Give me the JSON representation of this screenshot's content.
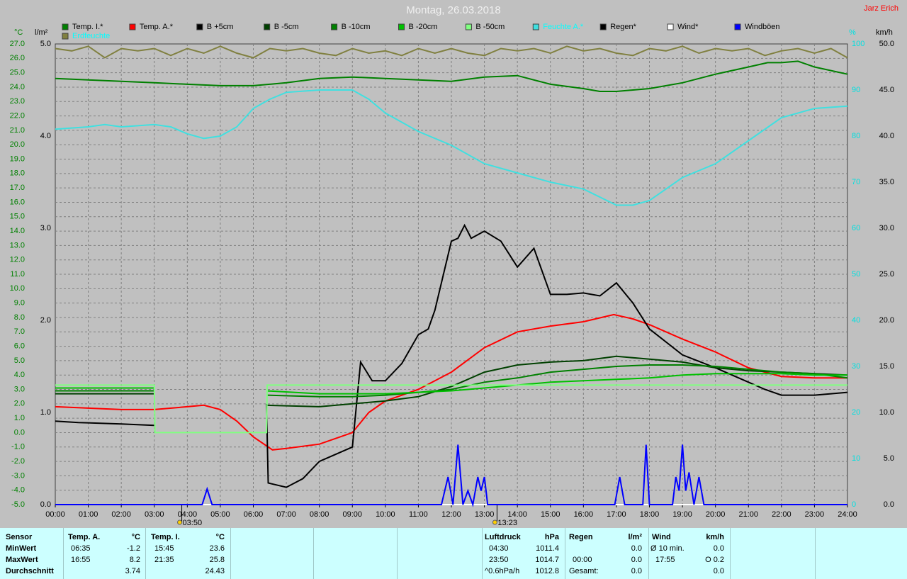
{
  "chart_data": {
    "type": "line",
    "title": "Montag, 26.03.2018",
    "author": "Jarz Erich",
    "y_unit": "°C",
    "y2_unit": "l/m²",
    "y3_unit": "%",
    "y4_unit": "km/h",
    "y_color": "#008000",
    "y2_color": "#000000",
    "y3_color": "#00e0e0",
    "y4_color": "#000000",
    "grid": true,
    "xlim": [
      0,
      24
    ],
    "xticks": [
      {
        "value": 0,
        "label": "00:00"
      },
      {
        "value": 1,
        "label": "01:00"
      },
      {
        "value": 2,
        "label": "02:00"
      },
      {
        "value": 3,
        "label": "03:00"
      },
      {
        "value": 4,
        "label": "04:00"
      },
      {
        "value": 5,
        "label": "05:00"
      },
      {
        "value": 6,
        "label": "06:00"
      },
      {
        "value": 7,
        "label": "07:00"
      },
      {
        "value": 8,
        "label": "08:00"
      },
      {
        "value": 9,
        "label": "09:00"
      },
      {
        "value": 10,
        "label": "10:00"
      },
      {
        "value": 11,
        "label": "11:00"
      },
      {
        "value": 12,
        "label": "12:00"
      },
      {
        "value": 13,
        "label": "13:00"
      },
      {
        "value": 14,
        "label": "14:00"
      },
      {
        "value": 15,
        "label": "15:00"
      },
      {
        "value": 16,
        "label": "16:00"
      },
      {
        "value": 17,
        "label": "17:00"
      },
      {
        "value": 18,
        "label": "18:00"
      },
      {
        "value": 19,
        "label": "19:00"
      },
      {
        "value": 20,
        "label": "20:00"
      },
      {
        "value": 21,
        "label": "21:00"
      },
      {
        "value": 22,
        "label": "22:00"
      },
      {
        "value": 23,
        "label": "23:00"
      },
      {
        "value": 24,
        "label": "24:00"
      }
    ],
    "ylim": [
      -5,
      27
    ],
    "yticks": [
      {
        "value": -5,
        "label": "-5.0"
      },
      {
        "value": -4,
        "label": "-4.0"
      },
      {
        "value": -3,
        "label": "-3.0"
      },
      {
        "value": -2,
        "label": "-2.0"
      },
      {
        "value": -1,
        "label": "-1.0"
      },
      {
        "value": 0,
        "label": "0.0"
      },
      {
        "value": 1,
        "label": "1.0"
      },
      {
        "value": 2,
        "label": "2.0"
      },
      {
        "value": 3,
        "label": "3.0"
      },
      {
        "value": 4,
        "label": "4.0"
      },
      {
        "value": 5,
        "label": "5.0"
      },
      {
        "value": 6,
        "label": "6.0"
      },
      {
        "value": 7,
        "label": "7.0"
      },
      {
        "value": 8,
        "label": "8.0"
      },
      {
        "value": 9,
        "label": "9.0"
      },
      {
        "value": 10,
        "label": "10.0"
      },
      {
        "value": 11,
        "label": "11.0"
      },
      {
        "value": 12,
        "label": "12.0"
      },
      {
        "value": 13,
        "label": "13.0"
      },
      {
        "value": 14,
        "label": "14.0"
      },
      {
        "value": 15,
        "label": "15.0"
      },
      {
        "value": 16,
        "label": "16.0"
      },
      {
        "value": 17,
        "label": "17.0"
      },
      {
        "value": 18,
        "label": "18.0"
      },
      {
        "value": 19,
        "label": "19.0"
      },
      {
        "value": 20,
        "label": "20.0"
      },
      {
        "value": 21,
        "label": "21.0"
      },
      {
        "value": 22,
        "label": "22.0"
      },
      {
        "value": 23,
        "label": "23.0"
      },
      {
        "value": 24,
        "label": "24.0"
      },
      {
        "value": 25,
        "label": "25.0"
      },
      {
        "value": 26,
        "label": "26.0"
      },
      {
        "value": 27,
        "label": "27.0"
      }
    ],
    "y2lim": [
      0,
      5
    ],
    "y2ticks": [
      {
        "value": 0,
        "label": "0.0"
      },
      {
        "value": 1,
        "label": "1.0"
      },
      {
        "value": 2,
        "label": "2.0"
      },
      {
        "value": 3,
        "label": "3.0"
      },
      {
        "value": 4,
        "label": "4.0"
      },
      {
        "value": 5,
        "label": "5.0"
      }
    ],
    "y3lim": [
      0,
      100
    ],
    "y3ticks": [
      0,
      10,
      20,
      30,
      40,
      50,
      60,
      70,
      80,
      90,
      100
    ],
    "y4lim": [
      0,
      50
    ],
    "y4ticks": [
      {
        "value": 0,
        "label": "0.0"
      },
      {
        "value": 5,
        "label": "5.0"
      },
      {
        "value": 10,
        "label": "10.0"
      },
      {
        "value": 15,
        "label": "15.0"
      },
      {
        "value": 20,
        "label": "20.0"
      },
      {
        "value": 25,
        "label": "25.0"
      },
      {
        "value": 30,
        "label": "30.0"
      },
      {
        "value": 35,
        "label": "35.0"
      },
      {
        "value": 40,
        "label": "40.0"
      },
      {
        "value": 45,
        "label": "45.0"
      },
      {
        "value": 50,
        "label": "50.0"
      }
    ],
    "annotations": [
      {
        "text": "03:50",
        "x": 3.833
      },
      {
        "text": "13:23",
        "x": 13.383
      }
    ],
    "series": [
      {
        "name": "Temp. I.*",
        "color": "#008000",
        "axis": "y",
        "x": [
          0,
          1,
          2,
          3,
          4,
          5,
          6,
          7,
          8,
          9,
          10,
          11,
          12,
          13,
          14,
          15,
          16,
          16.5,
          17,
          17.5,
          18,
          19,
          20,
          21,
          21.58,
          22,
          22.5,
          23,
          24
        ],
        "values": [
          24.6,
          24.5,
          24.4,
          24.3,
          24.2,
          24.1,
          24.1,
          24.3,
          24.6,
          24.7,
          24.6,
          24.5,
          24.4,
          24.7,
          24.8,
          24.2,
          23.9,
          23.7,
          23.7,
          23.8,
          23.9,
          24.3,
          24.9,
          25.4,
          25.7,
          25.7,
          25.8,
          25.4,
          24.9
        ]
      },
      {
        "name": "Temp. A.*",
        "color": "#ff0000",
        "axis": "y",
        "x": [
          0,
          1,
          2,
          3,
          4,
          4.5,
          5,
          5.5,
          6,
          6.58,
          7,
          8,
          8.5,
          9,
          9.5,
          10,
          11,
          12,
          13,
          14,
          15,
          16,
          16.92,
          17.5,
          18,
          19,
          20,
          21,
          22,
          23,
          24
        ],
        "values": [
          1.8,
          1.7,
          1.6,
          1.6,
          1.8,
          1.9,
          1.6,
          0.8,
          -0.3,
          -1.2,
          -1.1,
          -0.8,
          -0.4,
          0,
          1.4,
          2.2,
          3.0,
          4.2,
          5.9,
          7.0,
          7.4,
          7.7,
          8.2,
          7.9,
          7.5,
          6.5,
          5.6,
          4.5,
          3.9,
          3.8,
          3.8
        ]
      },
      {
        "name": "B +5cm",
        "color": "#000000",
        "axis": "y",
        "x": [
          0,
          0.7,
          2,
          3,
          3.2,
          6.4,
          6.45,
          7,
          7.5,
          8,
          8.5,
          9,
          9.25,
          9.6,
          10,
          10.5,
          11,
          11.3,
          11.5,
          12,
          12.2,
          12.4,
          12.6,
          13,
          13.5,
          14,
          14.5,
          15,
          15.5,
          16,
          16.5,
          17,
          17.5,
          18,
          19,
          20,
          21,
          21.5,
          22,
          23,
          24
        ],
        "values": [
          0.8,
          0.7,
          0.6,
          0.5,
          null,
          2.0,
          -3.5,
          -3.8,
          -3.2,
          -2.0,
          -1.5,
          -1.0,
          4.9,
          3.6,
          3.6,
          4.8,
          6.8,
          7.2,
          8.5,
          13.3,
          13.5,
          14.4,
          13.5,
          14.0,
          13.3,
          11.5,
          12.8,
          9.6,
          9.6,
          9.7,
          9.5,
          10.4,
          9.0,
          7.2,
          5.4,
          4.5,
          3.5,
          3.0,
          2.6,
          2.6,
          2.8
        ]
      },
      {
        "name": "B -5cm",
        "color": "#004000",
        "axis": "y",
        "x": [
          0,
          3,
          3.05,
          6.4,
          8,
          9,
          10,
          11,
          12,
          13,
          14,
          15,
          16,
          17,
          18,
          19,
          20,
          21,
          22,
          23,
          24
        ],
        "values": [
          2.7,
          2.7,
          null,
          1.9,
          1.8,
          2.0,
          2.2,
          2.5,
          3.2,
          4.2,
          4.7,
          4.9,
          5.0,
          5.3,
          5.1,
          4.9,
          4.5,
          4.3,
          4.2,
          4.1,
          4.0
        ]
      },
      {
        "name": "B -10cm",
        "color": "#008000",
        "axis": "y",
        "x": [
          0,
          3,
          3.05,
          6.4,
          8,
          9,
          10,
          11,
          12,
          13,
          14,
          15,
          16,
          17,
          18,
          19,
          20,
          21,
          22,
          23,
          24
        ],
        "values": [
          2.9,
          2.9,
          null,
          2.6,
          2.5,
          2.5,
          2.6,
          2.8,
          3.0,
          3.5,
          3.8,
          4.2,
          4.4,
          4.6,
          4.7,
          4.7,
          4.6,
          4.4,
          4.2,
          4.1,
          3.8
        ]
      },
      {
        "name": "B -20cm",
        "color": "#00c000",
        "axis": "y",
        "x": [
          0,
          3,
          3.05,
          6.4,
          8,
          9,
          10,
          11,
          12,
          13,
          14,
          15,
          16,
          17,
          18,
          19,
          20,
          21,
          22,
          23,
          24
        ],
        "values": [
          3.1,
          3.1,
          null,
          2.9,
          2.7,
          2.7,
          2.7,
          2.8,
          2.9,
          3.1,
          3.3,
          3.5,
          3.6,
          3.7,
          3.8,
          4.0,
          4.1,
          4.1,
          4.1,
          4.0,
          4.0
        ]
      },
      {
        "name": "B -50cm",
        "color": "#80ff80",
        "axis": "y",
        "x": [
          0,
          3,
          3.02,
          6.4,
          6.42,
          24
        ],
        "values": [
          3.3,
          3.3,
          0.0,
          0.0,
          3.3,
          3.3
        ]
      },
      {
        "name": "Feuchte A.*",
        "color": "#40e0e0",
        "label_color": "#00ffff",
        "axis": "y3",
        "x": [
          0,
          1,
          1.5,
          2,
          3,
          3.5,
          4,
          4.5,
          5,
          5.5,
          6,
          6.5,
          7,
          8,
          9,
          9.5,
          10,
          11,
          12,
          13,
          14,
          15,
          16,
          17,
          17.5,
          18,
          19,
          20,
          21,
          22,
          23,
          24
        ],
        "values": [
          81.5,
          82,
          82.5,
          82,
          82.5,
          82,
          80.5,
          79.5,
          80,
          82,
          86,
          88,
          89.5,
          90,
          90,
          88,
          85,
          81,
          78,
          74,
          72,
          70,
          68.5,
          65,
          65,
          66,
          71,
          74,
          79,
          84,
          86,
          86.5
        ]
      },
      {
        "name": "Regen*",
        "color": "#000000",
        "axis": "y2",
        "x": [
          0,
          24
        ],
        "values": [
          0,
          0
        ]
      },
      {
        "name": "Wind*",
        "color": "#ffffff",
        "axis": "y4",
        "x": [
          0,
          24
        ],
        "values": [
          0,
          0
        ]
      },
      {
        "name": "Windböen",
        "color": "#0000ff",
        "axis": "y4",
        "x": [
          0,
          4.45,
          4.6,
          4.75,
          11.7,
          11.9,
          12.05,
          12.2,
          12.35,
          12.5,
          12.65,
          12.8,
          12.9,
          13.0,
          13.1,
          16.95,
          17.1,
          17.25,
          17.8,
          17.9,
          18.0,
          18.7,
          18.8,
          18.9,
          19.0,
          19.1,
          19.2,
          19.35,
          19.5,
          19.65,
          24
        ],
        "values": [
          0,
          0,
          1.7,
          0,
          0,
          3.0,
          0,
          6.5,
          0,
          1.5,
          0,
          3.0,
          1.5,
          3.0,
          0,
          0,
          3.0,
          0,
          0,
          6.5,
          0,
          0,
          3.0,
          1.5,
          6.5,
          1.5,
          3.5,
          0,
          3.0,
          0,
          0
        ]
      },
      {
        "name": "Erdfeuchte",
        "color": "#808040",
        "label_color": "#00ffff",
        "axis": "y3",
        "x": [
          0,
          0.5,
          1,
          1.5,
          2,
          2.5,
          3,
          3.5,
          4,
          4.5,
          5,
          5.5,
          6,
          6.5,
          7,
          7.5,
          8,
          8.5,
          9,
          9.5,
          10,
          10.5,
          11,
          11.5,
          12,
          12.5,
          13,
          13.5,
          14,
          14.5,
          15,
          15.5,
          16,
          16.5,
          17,
          17.5,
          18,
          18.5,
          19,
          19.5,
          20,
          20.5,
          21,
          21.5,
          22,
          22.5,
          23,
          23.5,
          24
        ],
        "values": [
          99,
          98.5,
          99.5,
          97,
          99,
          98.5,
          99,
          97.5,
          99,
          98,
          99.5,
          98,
          97,
          99,
          98.5,
          99,
          98,
          97.5,
          99,
          98,
          98.5,
          97.5,
          99,
          98,
          99,
          98,
          97.5,
          99,
          98.5,
          99,
          98,
          99.5,
          98.5,
          99,
          98,
          97.5,
          99,
          98.5,
          99.5,
          98,
          99,
          98.5,
          99,
          97.5,
          98.5,
          99,
          98,
          99,
          97
        ]
      }
    ]
  },
  "summary": {
    "sensor": {
      "header": "Sensor",
      "rows": [
        "MinWert",
        "MaxWert",
        "Durchschnitt"
      ]
    },
    "temp_a": {
      "header": "Temp. A.",
      "unit": "°C",
      "min_time": "06:35",
      "min": "-1.2",
      "max_time": "16:55",
      "max": "8.2",
      "avg": "3.74"
    },
    "temp_i": {
      "header": "Temp. I.",
      "unit": "°C",
      "min_time": "15:45",
      "min": "23.6",
      "max_time": "21:35",
      "max": "25.8",
      "avg": "24.43"
    },
    "pressure": {
      "header": "Luftdruck",
      "unit": "hPa",
      "min_time": "04:30",
      "min": "1011.4",
      "max_time": "23:50",
      "max": "1014.7",
      "trend": "^0.6hPa/h",
      "avg": "1012.8"
    },
    "rain": {
      "header": "Regen",
      "unit": "l/m²",
      "current": "0.0",
      "max_time": "00:00",
      "max": "0.0",
      "total_label": "Gesamt:",
      "total": "0.0"
    },
    "wind": {
      "header": "Wind",
      "unit": "km/h",
      "avg_label": "Ø 10 min.",
      "avg": "0.0",
      "max_time": "17:55",
      "max": "O 0.2",
      "current": "0.0"
    }
  }
}
